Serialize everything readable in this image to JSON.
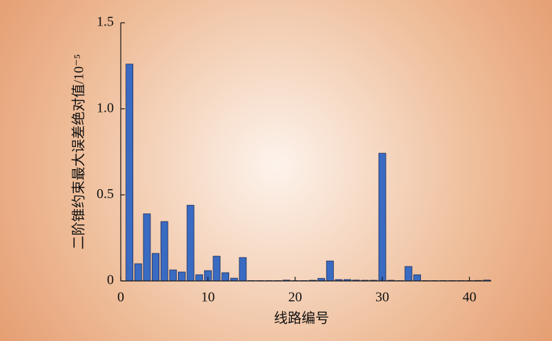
{
  "chart_data": {
    "type": "bar",
    "xlabel": "线路编号",
    "ylabel": "二阶锥约束最大误差绝对值/10⁻⁵",
    "x": [
      1,
      2,
      3,
      4,
      5,
      6,
      7,
      8,
      9,
      10,
      11,
      12,
      13,
      14,
      15,
      16,
      17,
      18,
      19,
      20,
      21,
      22,
      23,
      24,
      25,
      26,
      27,
      28,
      29,
      30,
      31,
      32,
      33,
      34,
      35,
      36,
      37,
      38,
      39,
      40,
      41,
      42
    ],
    "values": [
      1.26,
      0.1,
      0.39,
      0.16,
      0.345,
      0.064,
      0.052,
      0.44,
      0.036,
      0.06,
      0.144,
      0.048,
      0.016,
      0.136,
      0.002,
      0.002,
      0.002,
      0.002,
      0.005,
      0.002,
      0.002,
      0.004,
      0.015,
      0.116,
      0.008,
      0.008,
      0.005,
      0.004,
      0.004,
      0.742,
      0.004,
      0.002,
      0.084,
      0.036,
      0.002,
      0.002,
      0.002,
      0.002,
      0.002,
      0.002,
      0.003,
      0.005
    ],
    "color": "#3a6bc2",
    "xlim": [
      0,
      42.5
    ],
    "xticks": [
      0,
      10,
      20,
      30,
      40
    ],
    "ylim": [
      0,
      1.5
    ],
    "yticks": [
      0,
      0.5,
      {
        "value": 1,
        "label": "1.0"
      },
      1.5
    ],
    "grid": false
  }
}
